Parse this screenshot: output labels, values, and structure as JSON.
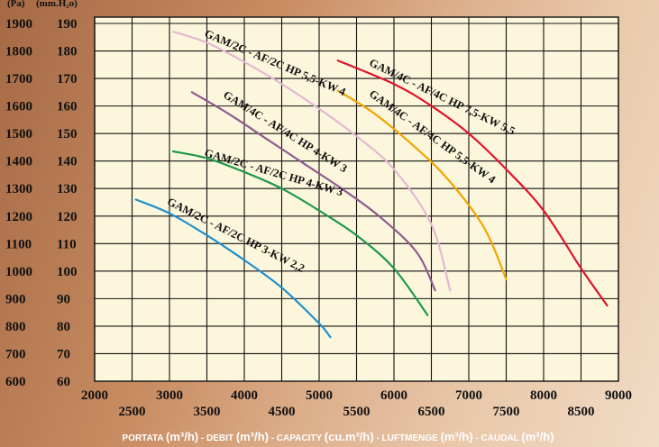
{
  "chart_data": {
    "type": "line",
    "y_label_pa": "(Pa)",
    "y_label_mm": "(mm.H₂o)",
    "y_ticks_pa": [
      "1900",
      "1800",
      "1700",
      "1600",
      "1500",
      "1400",
      "1300",
      "1200",
      "1100",
      "1000",
      "900",
      "800",
      "700",
      "600"
    ],
    "y_ticks_mm": [
      "190",
      "180",
      "170",
      "160",
      "150",
      "140",
      "130",
      "120",
      "110",
      "100",
      "90",
      "80",
      "70",
      "60"
    ],
    "x_ticks_upper": [
      "2000",
      "3000",
      "4000",
      "5000",
      "6000",
      "7000",
      "8000",
      "9000"
    ],
    "x_ticks_lower": [
      "2500",
      "3500",
      "4500",
      "5500",
      "6500",
      "7500",
      "8500"
    ],
    "xlim": [
      2000,
      9000
    ],
    "ylim_mm": [
      60,
      190
    ],
    "grid": true,
    "xlabel_parts": [
      {
        "t": "PORTATA ",
        "s": "small"
      },
      {
        "t": "(m³/h)",
        "s": "big"
      },
      {
        "t": " - DEBIT ",
        "s": "small"
      },
      {
        "t": "(m³/h)",
        "s": "big"
      },
      {
        "t": " - CAPACITY ",
        "s": "small"
      },
      {
        "t": "(cu.m³/h)",
        "s": "big"
      },
      {
        "t": " - LUFTMENGE ",
        "s": "small"
      },
      {
        "t": "(m³/h)",
        "s": "big"
      },
      {
        "t": " - CAUDAL  ",
        "s": "small"
      },
      {
        "t": "(m³/h)",
        "s": "big"
      }
    ],
    "series": [
      {
        "name": "GAM/2C - AF/2C HP 3-KW 2,2",
        "color": "#1f8fcf",
        "x": [
          2550,
          3000,
          3500,
          4000,
          4500,
          5000,
          5150
        ],
        "y": [
          126,
          121,
          113,
          104,
          94,
          81,
          76
        ]
      },
      {
        "name": "GAM/2C - AF/2C HP 4-KW 3",
        "color": "#1e9a4b",
        "x": [
          3050,
          3500,
          4000,
          4500,
          5000,
          5500,
          6000,
          6450
        ],
        "y": [
          143.5,
          141,
          136,
          130,
          122,
          113,
          101,
          84
        ]
      },
      {
        "name": "GAM/4C - AF/4C HP 4-KW 3",
        "color": "#8f5a8f",
        "x": [
          3300,
          3800,
          4300,
          4800,
          5300,
          5800,
          6300,
          6550
        ],
        "y": [
          165,
          157,
          148,
          139,
          130,
          120,
          107,
          93
        ]
      },
      {
        "name": "GAM/2C - AF/2C HP 5,5-KW 4",
        "color": "#e4b8d2",
        "x": [
          3050,
          3500,
          4000,
          4500,
          5000,
          5500,
          6000,
          6500,
          6750
        ],
        "y": [
          187,
          183,
          176,
          168,
          159,
          149,
          137,
          117,
          93
        ]
      },
      {
        "name": "GAM/4C - AF/4C HP 5,5-KW 4",
        "color": "#f0a500",
        "x": [
          5250,
          5700,
          6200,
          6700,
          7200,
          7500
        ],
        "y": [
          165.5,
          158,
          147,
          134,
          116,
          97
        ]
      },
      {
        "name": "GAM/4C - AF/4C HP 7,5-KW 5,5",
        "color": "#e0132b",
        "x": [
          5250,
          6000,
          6500,
          7000,
          7500,
          8000,
          8500,
          8850
        ],
        "y": [
          176.5,
          168,
          160,
          150,
          137,
          122,
          101,
          87.5
        ]
      }
    ]
  }
}
